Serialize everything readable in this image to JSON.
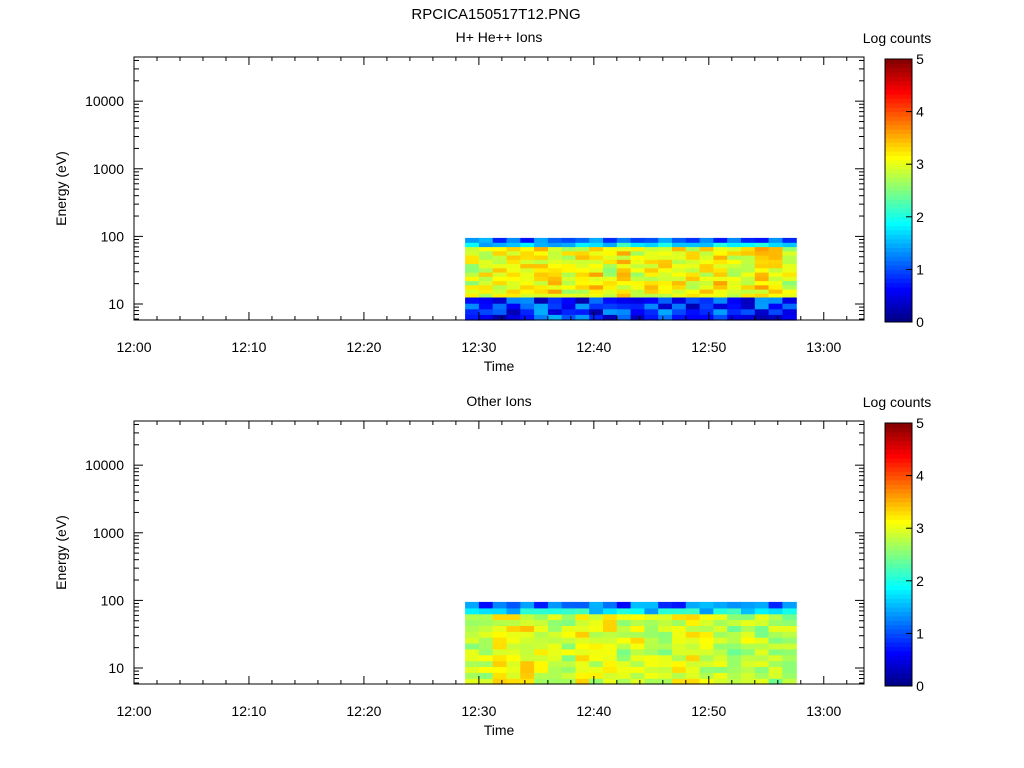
{
  "figure_title": "RPCICA150517T12.PNG",
  "colors": {
    "colormap": [
      "#00007f",
      "#0000ff",
      "#007fff",
      "#00ffff",
      "#7fff7f",
      "#ffff00",
      "#ff7f00",
      "#ff0000",
      "#7f0000"
    ]
  },
  "chart_data": [
    {
      "type": "heatmap",
      "title": "H+ He++ Ions",
      "xlabel": "Time",
      "ylabel": "Energy (eV)",
      "x_ticks": [
        "12:00",
        "12:10",
        "12:20",
        "12:30",
        "12:40",
        "12:50",
        "13:00"
      ],
      "xlim_minutes": [
        0,
        63.5
      ],
      "y_scale": "log",
      "ylim": [
        5.8,
        45000
      ],
      "y_ticks": [
        10,
        100,
        1000,
        10000
      ],
      "y_tick_labels": [
        "10",
        "100",
        "1000",
        "10000"
      ],
      "colorbar": {
        "label": "Log counts",
        "range": [
          0,
          5
        ],
        "tick_labels": [
          "0",
          "1",
          "2",
          "3",
          "4",
          "5"
        ]
      },
      "data_window": {
        "start_minute": 28.8,
        "end_minute": 57.6,
        "energy_min": 5.8,
        "energy_max": 95,
        "low_band_max": 12.5
      },
      "levels": {
        "upper_band": [
          2.0,
          3.5
        ],
        "lower_band": [
          0.2,
          1.5
        ]
      }
    },
    {
      "type": "heatmap",
      "title": "Other Ions",
      "xlabel": "Time",
      "ylabel": "Energy (eV)",
      "x_ticks": [
        "12:00",
        "12:10",
        "12:20",
        "12:30",
        "12:40",
        "12:50",
        "13:00"
      ],
      "xlim_minutes": [
        0,
        63.5
      ],
      "y_scale": "log",
      "ylim": [
        5.8,
        45000
      ],
      "y_ticks": [
        10,
        100,
        1000,
        10000
      ],
      "y_tick_labels": [
        "10",
        "100",
        "1000",
        "10000"
      ],
      "colorbar": {
        "label": "Log counts",
        "range": [
          0,
          5
        ],
        "tick_labels": [
          "0",
          "1",
          "2",
          "3",
          "4",
          "5"
        ]
      },
      "data_window": {
        "start_minute": 28.8,
        "end_minute": 57.6,
        "energy_min": 5.8,
        "energy_max": 95,
        "low_band_max": 5.8
      },
      "levels": {
        "upper_band": [
          2.0,
          3.3
        ],
        "lower_band": [
          2.0,
          3.3
        ]
      }
    }
  ]
}
